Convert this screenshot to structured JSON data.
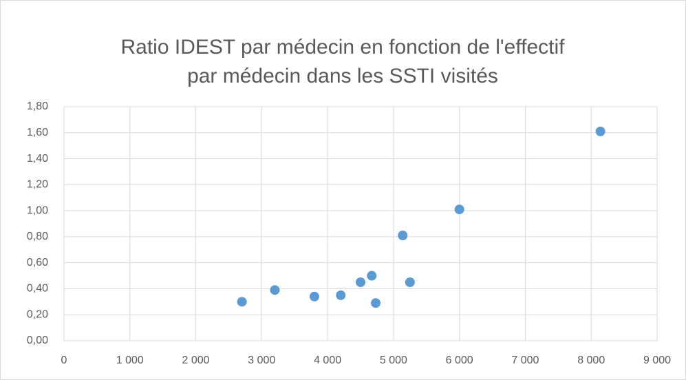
{
  "chart_data": {
    "type": "scatter",
    "title": [
      "Ratio IDEST par médecin en fonction de l'effectif",
      "par médecin dans les SSTI visités"
    ],
    "x": [
      2700,
      3200,
      3800,
      4200,
      4500,
      4670,
      4730,
      5140,
      5250,
      6000,
      8140
    ],
    "values": [
      0.3,
      0.39,
      0.34,
      0.35,
      0.45,
      0.5,
      0.29,
      0.81,
      0.45,
      1.01,
      1.61
    ],
    "color": "#5b9bd5",
    "xlim": [
      0,
      9000
    ],
    "xticks": [
      0,
      {
        "value": 1000,
        "label": "1 000"
      },
      {
        "value": 2000,
        "label": "2 000"
      },
      {
        "value": 3000,
        "label": "3 000"
      },
      {
        "value": 4000,
        "label": "4 000"
      },
      {
        "value": 5000,
        "label": "5 000"
      },
      {
        "value": 6000,
        "label": "6 000"
      },
      {
        "value": 7000,
        "label": "7 000"
      },
      {
        "value": 8000,
        "label": "8 000"
      },
      {
        "value": 9000,
        "label": "9 000"
      }
    ],
    "ylim": [
      0,
      1.8
    ],
    "yticks": [
      {
        "value": 0,
        "label": "0,00"
      },
      {
        "value": 0.2,
        "label": "0,20"
      },
      {
        "value": 0.4,
        "label": "0,40"
      },
      {
        "value": 0.6,
        "label": "0,60"
      },
      {
        "value": 0.8,
        "label": "0,80"
      },
      {
        "value": 1.0,
        "label": "1,00"
      },
      {
        "value": 1.2,
        "label": "1,20"
      },
      {
        "value": 1.4,
        "label": "1,40"
      },
      {
        "value": 1.6,
        "label": "1,60"
      },
      {
        "value": 1.8,
        "label": "1,80"
      }
    ],
    "grid": true
  }
}
